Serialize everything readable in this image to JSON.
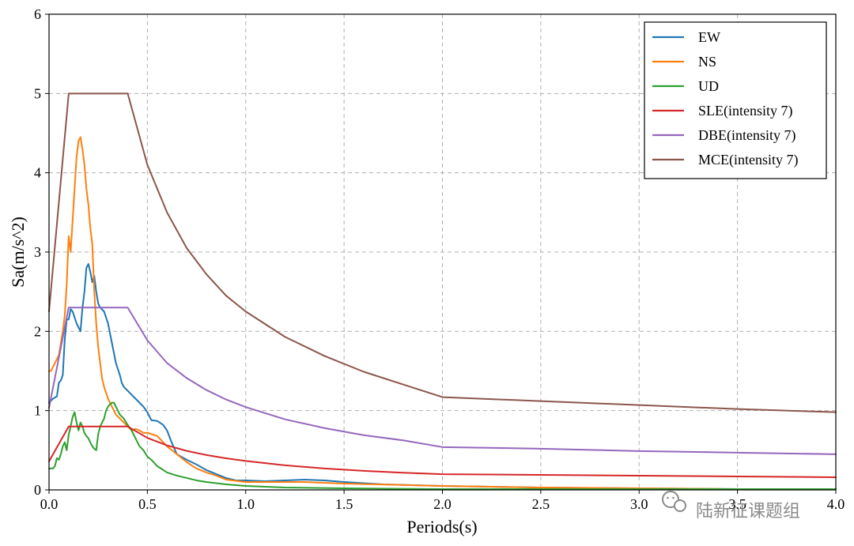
{
  "chart_data": {
    "type": "line",
    "xlabel": "Periods(s)",
    "ylabel": "Sa(m/s^2)",
    "xlim": [
      0,
      4.0
    ],
    "ylim": [
      0,
      6
    ],
    "xticks": [
      0.0,
      0.5,
      1.0,
      1.5,
      2.0,
      2.5,
      3.0,
      3.5,
      4.0
    ],
    "xtick_labels": [
      "0.0",
      "0.5",
      "1.0",
      "1.5",
      "2.0",
      "2.5",
      "3.0",
      "3.5",
      "4.0"
    ],
    "yticks": [
      0,
      1,
      2,
      3,
      4,
      5,
      6
    ],
    "ytick_labels": [
      "0",
      "1",
      "2",
      "3",
      "4",
      "5",
      "6"
    ],
    "grid": true,
    "legend_position": "top-right",
    "series": [
      {
        "name": "EW",
        "color": "#1f77b4",
        "x": [
          0,
          0.02,
          0.04,
          0.05,
          0.06,
          0.07,
          0.08,
          0.09,
          0.1,
          0.11,
          0.12,
          0.14,
          0.16,
          0.17,
          0.18,
          0.19,
          0.2,
          0.21,
          0.22,
          0.23,
          0.24,
          0.25,
          0.26,
          0.28,
          0.3,
          0.32,
          0.34,
          0.36,
          0.37,
          0.38,
          0.4,
          0.42,
          0.44,
          0.46,
          0.48,
          0.5,
          0.52,
          0.55,
          0.58,
          0.6,
          0.62,
          0.65,
          0.7,
          0.75,
          0.8,
          0.85,
          0.9,
          0.95,
          1.0,
          1.1,
          1.2,
          1.3,
          1.4,
          1.5,
          1.7,
          2.0,
          2.5,
          3.0,
          3.5,
          4.0
        ],
        "y": [
          1.1,
          1.15,
          1.18,
          1.35,
          1.38,
          1.45,
          1.9,
          2.15,
          2.15,
          2.28,
          2.25,
          2.1,
          2.0,
          2.3,
          2.5,
          2.8,
          2.85,
          2.75,
          2.62,
          2.7,
          2.5,
          2.35,
          2.3,
          2.25,
          2.1,
          1.85,
          1.6,
          1.45,
          1.35,
          1.3,
          1.25,
          1.2,
          1.15,
          1.1,
          1.05,
          0.98,
          0.88,
          0.87,
          0.82,
          0.75,
          0.62,
          0.45,
          0.38,
          0.32,
          0.25,
          0.2,
          0.15,
          0.12,
          0.12,
          0.11,
          0.12,
          0.13,
          0.12,
          0.1,
          0.07,
          0.05,
          0.03,
          0.02,
          0.01,
          0.01
        ]
      },
      {
        "name": "NS",
        "color": "#ff7f0e",
        "x": [
          0,
          0.01,
          0.02,
          0.03,
          0.05,
          0.07,
          0.08,
          0.09,
          0.1,
          0.11,
          0.12,
          0.13,
          0.14,
          0.15,
          0.16,
          0.17,
          0.18,
          0.19,
          0.2,
          0.21,
          0.22,
          0.23,
          0.24,
          0.25,
          0.26,
          0.27,
          0.28,
          0.3,
          0.32,
          0.34,
          0.36,
          0.38,
          0.4,
          0.42,
          0.44,
          0.46,
          0.48,
          0.5,
          0.55,
          0.6,
          0.65,
          0.7,
          0.75,
          0.8,
          0.85,
          0.9,
          1.0,
          1.1,
          1.2,
          1.3,
          1.5,
          2.0,
          2.5,
          3.0,
          3.5,
          4.0
        ],
        "y": [
          1.5,
          1.5,
          1.55,
          1.6,
          1.7,
          2.0,
          2.2,
          2.6,
          3.2,
          3.0,
          3.4,
          3.8,
          4.2,
          4.4,
          4.45,
          4.3,
          4.1,
          3.8,
          3.6,
          3.3,
          3.1,
          2.5,
          2.1,
          1.8,
          1.6,
          1.4,
          1.3,
          1.15,
          1.05,
          0.95,
          0.9,
          0.85,
          0.8,
          0.75,
          0.77,
          0.75,
          0.72,
          0.72,
          0.68,
          0.55,
          0.45,
          0.35,
          0.27,
          0.22,
          0.18,
          0.13,
          0.1,
          0.1,
          0.1,
          0.1,
          0.08,
          0.05,
          0.03,
          0.02,
          0.01,
          0.01
        ]
      },
      {
        "name": "UD",
        "color": "#2ca02c",
        "x": [
          0,
          0.02,
          0.03,
          0.04,
          0.05,
          0.06,
          0.07,
          0.08,
          0.09,
          0.1,
          0.11,
          0.12,
          0.13,
          0.14,
          0.15,
          0.16,
          0.17,
          0.18,
          0.19,
          0.2,
          0.21,
          0.22,
          0.23,
          0.24,
          0.25,
          0.26,
          0.27,
          0.28,
          0.29,
          0.3,
          0.31,
          0.32,
          0.33,
          0.34,
          0.35,
          0.36,
          0.38,
          0.4,
          0.42,
          0.44,
          0.46,
          0.48,
          0.5,
          0.52,
          0.55,
          0.6,
          0.65,
          0.7,
          0.75,
          0.8,
          0.9,
          1.0,
          1.2,
          1.5,
          2.0,
          3.0,
          4.0
        ],
        "y": [
          0.27,
          0.27,
          0.3,
          0.4,
          0.38,
          0.45,
          0.55,
          0.6,
          0.5,
          0.7,
          0.8,
          0.92,
          0.98,
          0.85,
          0.75,
          0.85,
          0.8,
          0.72,
          0.68,
          0.65,
          0.6,
          0.55,
          0.52,
          0.5,
          0.7,
          0.8,
          0.85,
          0.9,
          1.0,
          1.05,
          1.08,
          1.1,
          1.1,
          1.05,
          1.0,
          0.95,
          0.9,
          0.82,
          0.75,
          0.65,
          0.55,
          0.5,
          0.42,
          0.38,
          0.3,
          0.22,
          0.18,
          0.15,
          0.12,
          0.1,
          0.07,
          0.05,
          0.03,
          0.02,
          0.01,
          0.01,
          0.01
        ]
      },
      {
        "name": "SLE(intensity 7)",
        "color": "#d62728",
        "x": [
          0,
          0.1,
          0.4,
          0.5,
          0.6,
          0.7,
          0.8,
          0.9,
          1.0,
          1.2,
          1.4,
          1.6,
          1.8,
          2.0,
          2.5,
          3.0,
          3.5,
          4.0
        ],
        "y": [
          0.36,
          0.8,
          0.8,
          0.656,
          0.561,
          0.492,
          0.44,
          0.399,
          0.365,
          0.31,
          0.27,
          0.24,
          0.217,
          0.198,
          0.19,
          0.18,
          0.17,
          0.16
        ]
      },
      {
        "name": "DBE(intensity 7)",
        "color": "#9467bd",
        "x": [
          0,
          0.1,
          0.4,
          0.5,
          0.6,
          0.7,
          0.8,
          0.9,
          1.0,
          1.2,
          1.4,
          1.6,
          1.8,
          2.0,
          2.5,
          3.0,
          3.5,
          4.0
        ],
        "y": [
          1.035,
          2.3,
          2.3,
          1.886,
          1.6,
          1.41,
          1.26,
          1.14,
          1.045,
          0.89,
          0.78,
          0.69,
          0.625,
          0.54,
          0.52,
          0.49,
          0.47,
          0.45
        ]
      },
      {
        "name": "MCE(intensity 7)",
        "color": "#8c564b",
        "x": [
          0,
          0.1,
          0.4,
          0.5,
          0.6,
          0.7,
          0.8,
          0.9,
          1.0,
          1.2,
          1.4,
          1.6,
          1.8,
          2.0,
          2.5,
          3.0,
          3.5,
          4.0
        ],
        "y": [
          2.25,
          5.0,
          5.0,
          4.1,
          3.5,
          3.05,
          2.72,
          2.45,
          2.25,
          1.93,
          1.69,
          1.49,
          1.33,
          1.17,
          1.12,
          1.07,
          1.02,
          0.98
        ]
      }
    ]
  },
  "watermark": {
    "icon": "wechat-icon",
    "text": "陆新征课题组"
  }
}
